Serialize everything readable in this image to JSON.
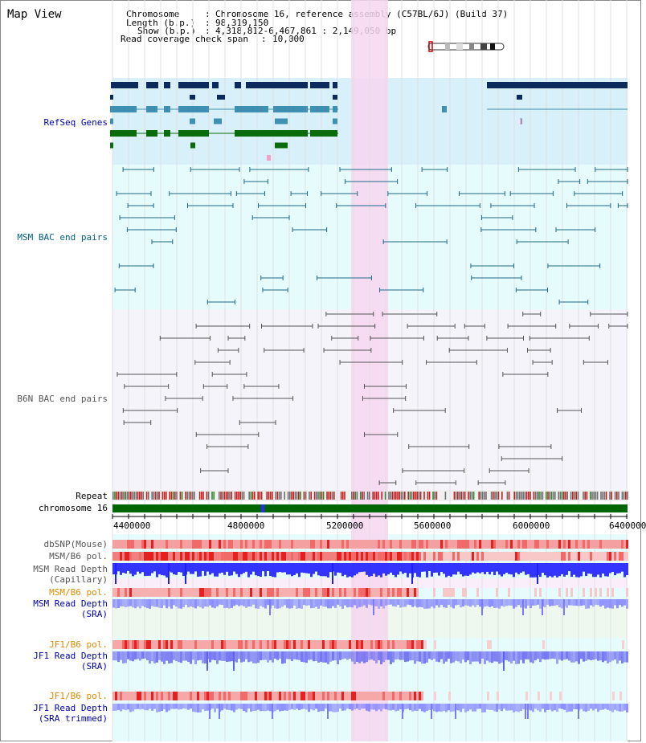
{
  "window": {
    "title": "Map View"
  },
  "header": {
    "chromosome_key": "Chromosome",
    "chromosome_val": "Chromosome 16, reference assembly (C57BL/6J) (Build 37)",
    "length_key": "Length (b.p.)",
    "length_val": "98,319,150",
    "show_key": "Show (b.p.)",
    "show_val": "4,318,812-6,467,861 : 2,149,050 bp",
    "coverage_key": "Read coverage check span",
    "coverage_val": "10,000"
  },
  "tracks": {
    "refseq": "RefSeq Genes",
    "msm_bac": "MSM BAC end pairs",
    "b6n_bac": "B6N BAC end pairs",
    "repeat": "Repeat",
    "chromosome": "chromosome 16",
    "dbsnp": "dbSNP(Mouse)",
    "msm_b6_pol": "MSM/B6 pol.",
    "msm_depth_cap_1": "MSM Read Depth",
    "msm_depth_cap_2": "(Capillary)",
    "msm_b6_pol_2": "MSM/B6 pol.",
    "msm_depth_sra_1": "MSM Read Depth",
    "msm_depth_sra_2": "(SRA)",
    "jf1_b6_pol": "JF1/B6 pol.",
    "jf1_depth_sra_1": "JF1 Read Depth",
    "jf1_depth_sra_2": "(SRA)",
    "jf1_b6_pol_2": "JF1/B6 pol.",
    "jf1_depth_trim_1": "JF1 Read Depth",
    "jf1_depth_trim_2": "(SRA trimmed)"
  },
  "axis": {
    "ticks": [
      "4400000",
      "4800000",
      "5200000",
      "5600000",
      "6000000",
      "6400000"
    ]
  },
  "colors": {
    "refseq_bg": "#d8f0fa",
    "msm_bg": "#e6fbfb",
    "b6n_bg": "#f4f4fa",
    "highlight": "#f7d6f0",
    "gene_dark": "#0d2a5c",
    "gene_mid": "#3f8fb3",
    "gene_green": "#0a6b0a",
    "label_blue": "#0000aa",
    "label_teal": "#006080",
    "label_orange": "#e08a00",
    "chromosome_green": "#006600",
    "depth_blue": "#1f1fff"
  }
}
